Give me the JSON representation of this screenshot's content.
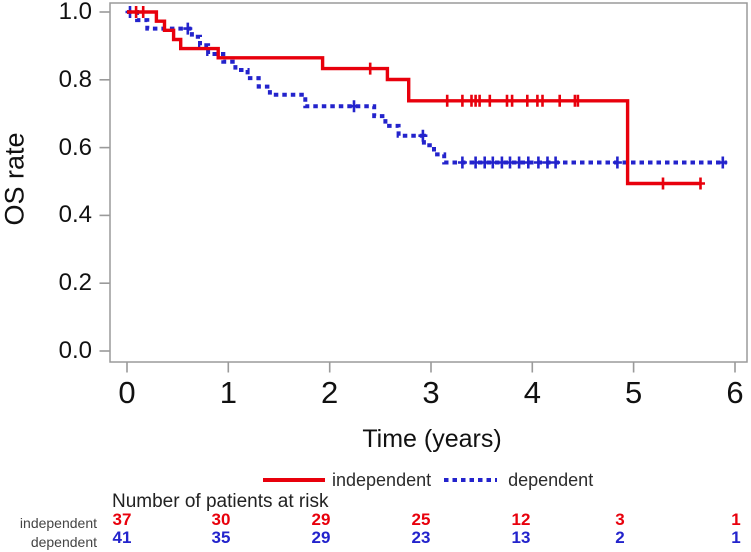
{
  "chart_data": {
    "type": "line",
    "subtype": "kaplan-meier-step",
    "title": "",
    "xlabel": "Time (years)",
    "ylabel": "OS rate",
    "xlim": [
      0,
      6
    ],
    "ylim": [
      0.0,
      1.0
    ],
    "x_ticks": [
      "0",
      "1",
      "2",
      "3",
      "4",
      "5",
      "6"
    ],
    "y_ticks": [
      "1.0",
      "0.8",
      "0.6",
      "0.4",
      "0.2",
      "0.0"
    ],
    "grid": false,
    "legend_position": "below-x-axis",
    "legend": [
      {
        "label": "independent",
        "color": "#e8000c",
        "line_style": "solid"
      },
      {
        "label": "dependent",
        "color": "#2323cc",
        "line_style": "dotted"
      }
    ],
    "series": [
      {
        "name": "dependent",
        "color": "#2323cc",
        "line_style": "dotted",
        "steps": [
          [
            0,
            1.0
          ],
          [
            0.1,
            0.976
          ],
          [
            0.2,
            0.951
          ],
          [
            0.64,
            0.927
          ],
          [
            0.72,
            0.902
          ],
          [
            0.8,
            0.876
          ],
          [
            0.95,
            0.853
          ],
          [
            1.07,
            0.829
          ],
          [
            1.19,
            0.805
          ],
          [
            1.3,
            0.78
          ],
          [
            1.41,
            0.756
          ],
          [
            1.76,
            0.722
          ],
          [
            2.44,
            0.693
          ],
          [
            2.55,
            0.664
          ],
          [
            2.68,
            0.635
          ],
          [
            2.93,
            0.607
          ],
          [
            3.03,
            0.58
          ],
          [
            3.13,
            0.556
          ]
        ],
        "end_time": 5.92,
        "censor_marks": [
          [
            0.03,
            1.0
          ],
          [
            0.6,
            0.951
          ],
          [
            2.24,
            0.722
          ],
          [
            2.92,
            0.635
          ],
          [
            3.31,
            0.556
          ],
          [
            3.44,
            0.556
          ],
          [
            3.53,
            0.556
          ],
          [
            3.61,
            0.556
          ],
          [
            3.7,
            0.556
          ],
          [
            3.78,
            0.556
          ],
          [
            3.87,
            0.556
          ],
          [
            3.96,
            0.556
          ],
          [
            4.06,
            0.556
          ],
          [
            4.15,
            0.556
          ],
          [
            4.23,
            0.556
          ],
          [
            4.84,
            0.556
          ],
          [
            5.88,
            0.556
          ]
        ]
      },
      {
        "name": "independent",
        "color": "#e8000c",
        "line_style": "solid",
        "steps": [
          [
            0,
            1.0
          ],
          [
            0.29,
            0.973
          ],
          [
            0.37,
            0.946
          ],
          [
            0.46,
            0.919
          ],
          [
            0.53,
            0.892
          ],
          [
            0.9,
            0.865
          ],
          [
            1.93,
            0.833
          ],
          [
            2.57,
            0.801
          ],
          [
            2.78,
            0.738
          ],
          [
            4.94,
            0.494
          ]
        ],
        "end_time": 5.67,
        "censor_marks": [
          [
            0.09,
            1.0
          ],
          [
            0.16,
            1.0
          ],
          [
            2.4,
            0.833
          ],
          [
            3.16,
            0.738
          ],
          [
            3.31,
            0.738
          ],
          [
            3.4,
            0.738
          ],
          [
            3.44,
            0.738
          ],
          [
            3.48,
            0.738
          ],
          [
            3.58,
            0.738
          ],
          [
            3.75,
            0.738
          ],
          [
            3.8,
            0.738
          ],
          [
            3.95,
            0.738
          ],
          [
            4.05,
            0.738
          ],
          [
            4.1,
            0.738
          ],
          [
            4.27,
            0.738
          ],
          [
            4.42,
            0.738
          ],
          [
            4.45,
            0.738
          ],
          [
            5.29,
            0.494
          ],
          [
            5.66,
            0.494
          ]
        ]
      }
    ]
  },
  "risk_table": {
    "title": "Number of patients at risk",
    "time_points": [
      "0",
      "1",
      "2",
      "3",
      "4",
      "5",
      "6"
    ],
    "rows": [
      {
        "label": "independent",
        "color": "#e8000c",
        "values": [
          "37",
          "30",
          "29",
          "25",
          "12",
          "3",
          "1"
        ]
      },
      {
        "label": "dependent",
        "color": "#2323cc",
        "values": [
          "41",
          "35",
          "29",
          "23",
          "13",
          "2",
          "1"
        ]
      }
    ]
  },
  "colors": {
    "frame": "#9a9a9a",
    "tick_text": "#111111",
    "background": "#ffffff"
  }
}
